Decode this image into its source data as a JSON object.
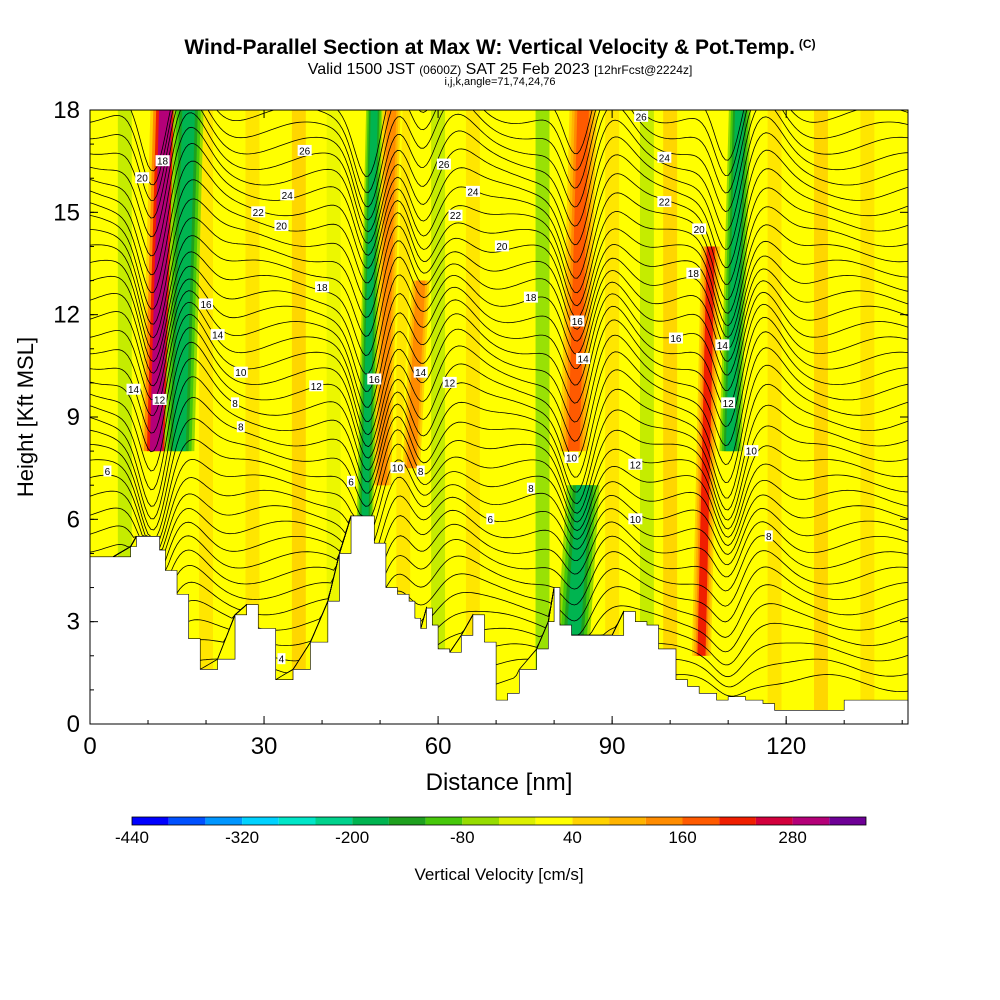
{
  "header": {
    "title": "Wind-Parallel Section at Max W: Vertical Velocity & Pot.Temp.",
    "title_mark": "(C)",
    "subtitle_main": "Valid 1500 JST",
    "subtitle_z": "(0600Z)",
    "subtitle_date": "SAT 25 Feb 2023",
    "subtitle_fcst": "[12hrFcst@2224z]",
    "subtitle2": "i,j,k,angle=71,74,24,76"
  },
  "chart_data": {
    "type": "heatmap",
    "title": "Wind-Parallel Section at Max W: Vertical Velocity & Pot.Temp.",
    "xlabel": "Distance [nm]",
    "ylabel": "Height [Kft MSL]",
    "xlim": [
      0,
      141
    ],
    "ylim": [
      0,
      18
    ],
    "x_ticks": [
      0,
      30,
      60,
      90,
      120
    ],
    "y_ticks": [
      0,
      3,
      6,
      9,
      12,
      15,
      18
    ],
    "colorbar": {
      "label": "Vertical Velocity [cm/s]",
      "tick_labels": [
        "-440",
        "-320",
        "-200",
        "-80",
        "40",
        "160",
        "280"
      ],
      "tick_values": [
        -440,
        -320,
        -200,
        -80,
        40,
        160,
        280
      ],
      "bins": [
        -440,
        -400,
        -360,
        -320,
        -280,
        -240,
        -200,
        -160,
        -120,
        -80,
        -40,
        0,
        40,
        80,
        120,
        160,
        200,
        240,
        280,
        320
      ],
      "colors": [
        "#0000ff",
        "#0050ff",
        "#0096ff",
        "#00d2ff",
        "#00e6c8",
        "#00d28c",
        "#00b450",
        "#1ea01e",
        "#46c80a",
        "#96dc00",
        "#dcf000",
        "#ffff00",
        "#ffd200",
        "#ffb400",
        "#ff8c00",
        "#ff5a00",
        "#f01e00",
        "#d2003c",
        "#b40078",
        "#6e0096"
      ]
    },
    "terrain_kft": [
      [
        0,
        4.9
      ],
      [
        4,
        4.9
      ],
      [
        7,
        5.2
      ],
      [
        8,
        5.5
      ],
      [
        11,
        5.5
      ],
      [
        12,
        5.1
      ],
      [
        13,
        4.5
      ],
      [
        15,
        3.8
      ],
      [
        17,
        2.5
      ],
      [
        19,
        1.6
      ],
      [
        22,
        1.9
      ],
      [
        25,
        3.2
      ],
      [
        27,
        3.5
      ],
      [
        29,
        2.8
      ],
      [
        32,
        1.3
      ],
      [
        35,
        1.6
      ],
      [
        38,
        2.4
      ],
      [
        41,
        3.6
      ],
      [
        43,
        5.0
      ],
      [
        45,
        6.1
      ],
      [
        47,
        6.1
      ],
      [
        49,
        5.3
      ],
      [
        51,
        4.0
      ],
      [
        53,
        3.8
      ],
      [
        55,
        3.6
      ],
      [
        56,
        3.1
      ],
      [
        57,
        2.8
      ],
      [
        58,
        3.4
      ],
      [
        59,
        2.9
      ],
      [
        60,
        2.2
      ],
      [
        62,
        2.1
      ],
      [
        64,
        2.6
      ],
      [
        66,
        3.2
      ],
      [
        68,
        2.4
      ],
      [
        70,
        0.7
      ],
      [
        72,
        0.9
      ],
      [
        74,
        1.6
      ],
      [
        77,
        2.2
      ],
      [
        79,
        3.0
      ],
      [
        80,
        4.0
      ],
      [
        81,
        2.9
      ],
      [
        83,
        2.6
      ],
      [
        85,
        2.6
      ],
      [
        88,
        2.6
      ],
      [
        90,
        2.6
      ],
      [
        92,
        3.3
      ],
      [
        94,
        3.0
      ],
      [
        96,
        2.9
      ],
      [
        98,
        2.2
      ],
      [
        101,
        1.3
      ],
      [
        103,
        1.1
      ],
      [
        105,
        0.9
      ],
      [
        108,
        0.7
      ],
      [
        110,
        0.8
      ],
      [
        113,
        0.7
      ],
      [
        116,
        0.6
      ],
      [
        118,
        0.4
      ],
      [
        123,
        0.4
      ],
      [
        127,
        0.4
      ],
      [
        130,
        0.7
      ],
      [
        135,
        0.7
      ],
      [
        141,
        0.7
      ]
    ],
    "updraft_cores": [
      {
        "x": 12,
        "w": 2.2,
        "y_bottom": 8.0,
        "y_top": 18,
        "peak_cm_s": 280
      },
      {
        "x": 51,
        "w": 1.6,
        "y_bottom": 7.0,
        "y_top": 18,
        "peak_cm_s": 120
      },
      {
        "x": 56,
        "w": 1.6,
        "y_bottom": 7.5,
        "y_top": 13,
        "peak_cm_s": 140
      },
      {
        "x": 84,
        "w": 2.0,
        "y_bottom": 8.0,
        "y_top": 18,
        "peak_cm_s": 160
      },
      {
        "x": 106,
        "w": 1.4,
        "y_bottom": 2.0,
        "y_top": 14,
        "peak_cm_s": 200
      }
    ],
    "downdraft_cores": [
      {
        "x": 16,
        "w": 2.2,
        "y_bottom": 8.0,
        "y_top": 18,
        "peak_cm_s": -200
      },
      {
        "x": 48,
        "w": 1.2,
        "y_bottom": 6.0,
        "y_top": 18,
        "peak_cm_s": -200
      },
      {
        "x": 84,
        "w": 2.4,
        "y_bottom": 2.6,
        "y_top": 7.0,
        "peak_cm_s": -200
      },
      {
        "x": 111,
        "w": 1.6,
        "y_bottom": 8.0,
        "y_top": 18,
        "peak_cm_s": -200
      }
    ],
    "contour_labels": [
      {
        "x": 9,
        "y": 16.0,
        "text": "20"
      },
      {
        "x": 12.5,
        "y": 16.5,
        "text": "18"
      },
      {
        "x": 20,
        "y": 12.3,
        "text": "16"
      },
      {
        "x": 22,
        "y": 11.4,
        "text": "14"
      },
      {
        "x": 7.5,
        "y": 9.8,
        "text": "14"
      },
      {
        "x": 12,
        "y": 9.5,
        "text": "12"
      },
      {
        "x": 26,
        "y": 10.3,
        "text": "10"
      },
      {
        "x": 25,
        "y": 9.4,
        "text": "8"
      },
      {
        "x": 26,
        "y": 8.7,
        "text": "8"
      },
      {
        "x": 3,
        "y": 7.4,
        "text": "6"
      },
      {
        "x": 37,
        "y": 16.8,
        "text": "26"
      },
      {
        "x": 34,
        "y": 15.5,
        "text": "24"
      },
      {
        "x": 29,
        "y": 15.0,
        "text": "22"
      },
      {
        "x": 33,
        "y": 14.6,
        "text": "20"
      },
      {
        "x": 40,
        "y": 12.8,
        "text": "18"
      },
      {
        "x": 39,
        "y": 9.9,
        "text": "12"
      },
      {
        "x": 49,
        "y": 10.1,
        "text": "16"
      },
      {
        "x": 57,
        "y": 10.3,
        "text": "14"
      },
      {
        "x": 62,
        "y": 10.0,
        "text": "12"
      },
      {
        "x": 53,
        "y": 7.5,
        "text": "10"
      },
      {
        "x": 57,
        "y": 7.4,
        "text": "8"
      },
      {
        "x": 45,
        "y": 7.1,
        "text": "6"
      },
      {
        "x": 61,
        "y": 16.4,
        "text": "26"
      },
      {
        "x": 66,
        "y": 15.6,
        "text": "24"
      },
      {
        "x": 63,
        "y": 14.9,
        "text": "22"
      },
      {
        "x": 71,
        "y": 14.0,
        "text": "20"
      },
      {
        "x": 76,
        "y": 12.5,
        "text": "18"
      },
      {
        "x": 84,
        "y": 11.8,
        "text": "16"
      },
      {
        "x": 85,
        "y": 10.7,
        "text": "14"
      },
      {
        "x": 76,
        "y": 6.9,
        "text": "8"
      },
      {
        "x": 69,
        "y": 6.0,
        "text": "6"
      },
      {
        "x": 83,
        "y": 7.8,
        "text": "10"
      },
      {
        "x": 94,
        "y": 7.6,
        "text": "12"
      },
      {
        "x": 94,
        "y": 6.0,
        "text": "10"
      },
      {
        "x": 95,
        "y": 17.8,
        "text": "26"
      },
      {
        "x": 99,
        "y": 16.6,
        "text": "24"
      },
      {
        "x": 99,
        "y": 15.3,
        "text": "22"
      },
      {
        "x": 105,
        "y": 14.5,
        "text": "20"
      },
      {
        "x": 104,
        "y": 13.2,
        "text": "18"
      },
      {
        "x": 101,
        "y": 11.3,
        "text": "16"
      },
      {
        "x": 109,
        "y": 11.1,
        "text": "14"
      },
      {
        "x": 110,
        "y": 9.4,
        "text": "12"
      },
      {
        "x": 114,
        "y": 8.0,
        "text": "10"
      },
      {
        "x": 117,
        "y": 5.5,
        "text": "8"
      },
      {
        "x": 33,
        "y": 1.9,
        "text": "4"
      }
    ]
  }
}
